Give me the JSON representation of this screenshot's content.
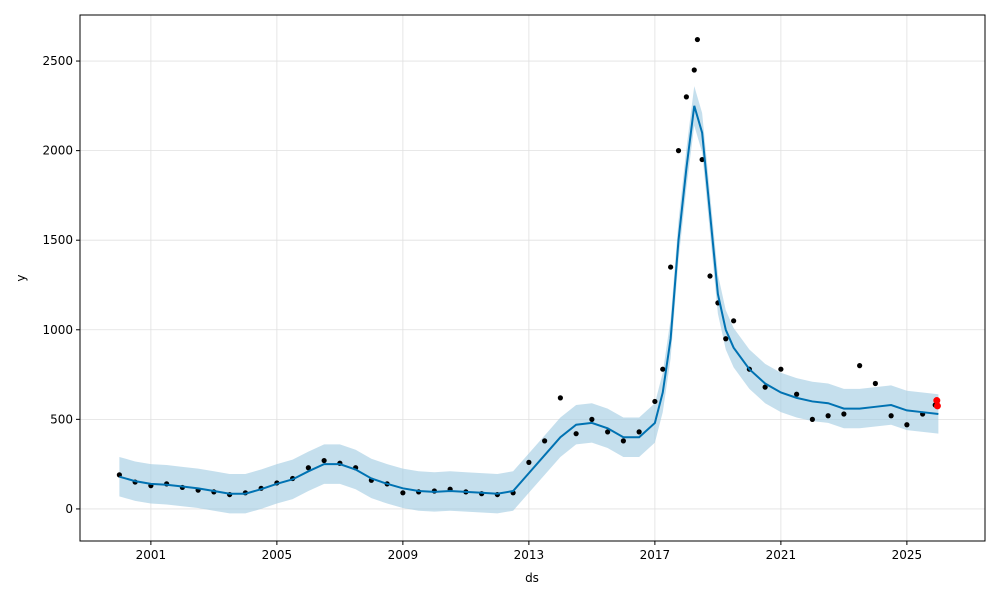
{
  "chart_data": {
    "type": "forecast",
    "x_label": "ds",
    "y_label": "y",
    "xlim": [
      1998.75,
      2027.48
    ],
    "ylim": [
      -179,
      2757
    ],
    "xticks": [
      2001,
      2005,
      2009,
      2013,
      2017,
      2021,
      2025
    ],
    "yticks": [
      0,
      500,
      1000,
      1500,
      2000,
      2500
    ],
    "grid": true,
    "forecast": {
      "color": "#0072b2",
      "band_color": "#9ecae1",
      "x": [
        2000.0,
        2000.5,
        2001,
        2001.5,
        2002,
        2002.5,
        2003,
        2003.5,
        2004,
        2004.5,
        2005,
        2005.5,
        2006,
        2006.5,
        2007,
        2007.5,
        2008,
        2008.5,
        2009,
        2009.5,
        2010,
        2010.5,
        2011,
        2011.5,
        2012,
        2012.5,
        2013,
        2013.5,
        2014,
        2014.5,
        2015,
        2015.5,
        2016,
        2016.5,
        2017,
        2017.25,
        2017.5,
        2017.75,
        2018,
        2018.25,
        2018.5,
        2018.75,
        2019,
        2019.25,
        2019.5,
        2020,
        2020.5,
        2021,
        2021.5,
        2022,
        2022.5,
        2023,
        2023.5,
        2024,
        2024.5,
        2025,
        2025.5,
        2026
      ],
      "yhat": [
        180,
        155,
        140,
        135,
        125,
        115,
        100,
        85,
        85,
        110,
        140,
        165,
        210,
        250,
        250,
        220,
        170,
        140,
        115,
        100,
        95,
        100,
        95,
        90,
        85,
        100,
        200,
        300,
        400,
        470,
        480,
        450,
        400,
        400,
        480,
        650,
        950,
        1500,
        1900,
        2250,
        2100,
        1650,
        1200,
        1000,
        900,
        780,
        700,
        650,
        620,
        600,
        590,
        560,
        560,
        570,
        580,
        550,
        540,
        530
      ],
      "lower": [
        70,
        45,
        30,
        25,
        15,
        5,
        -10,
        -25,
        -25,
        0,
        30,
        55,
        100,
        140,
        140,
        110,
        60,
        30,
        5,
        -10,
        -15,
        -10,
        -15,
        -20,
        -25,
        -10,
        90,
        190,
        290,
        360,
        370,
        340,
        290,
        290,
        370,
        540,
        840,
        1390,
        1790,
        2140,
        1990,
        1540,
        1090,
        890,
        790,
        670,
        590,
        540,
        510,
        490,
        480,
        450,
        450,
        460,
        470,
        440,
        430,
        420
      ],
      "upper": [
        290,
        265,
        250,
        245,
        235,
        225,
        210,
        195,
        195,
        220,
        250,
        275,
        320,
        360,
        360,
        330,
        280,
        250,
        225,
        210,
        205,
        210,
        205,
        200,
        195,
        210,
        310,
        410,
        510,
        580,
        590,
        560,
        510,
        510,
        590,
        760,
        1060,
        1610,
        2010,
        2360,
        2210,
        1760,
        1310,
        1110,
        1010,
        890,
        810,
        760,
        730,
        710,
        700,
        670,
        670,
        680,
        690,
        660,
        650,
        640
      ]
    },
    "observed": {
      "color": "#000000",
      "x": [
        2000.0,
        2000.5,
        2001,
        2001.5,
        2002,
        2002.5,
        2003,
        2003.5,
        2004,
        2004.5,
        2005,
        2005.5,
        2006,
        2006.5,
        2007,
        2007.5,
        2008,
        2008.5,
        2009,
        2009.5,
        2010,
        2010.5,
        2011,
        2011.5,
        2012,
        2012.5,
        2013,
        2013.5,
        2014,
        2014.5,
        2015,
        2015.5,
        2016,
        2016.5,
        2017,
        2017.25,
        2017.5,
        2017.75,
        2018,
        2018.25,
        2018.35,
        2018.5,
        2018.75,
        2019,
        2019.25,
        2019.5,
        2020,
        2020.5,
        2021,
        2021.5,
        2022,
        2022.5,
        2023,
        2023.5,
        2024,
        2024.5,
        2025,
        2025.5,
        2025.9
      ],
      "y": [
        190,
        150,
        130,
        140,
        120,
        105,
        95,
        80,
        90,
        115,
        145,
        170,
        230,
        270,
        255,
        230,
        160,
        140,
        90,
        95,
        100,
        110,
        95,
        85,
        80,
        90,
        260,
        380,
        620,
        420,
        500,
        430,
        380,
        430,
        600,
        780,
        1350,
        2000,
        2300,
        2450,
        2620,
        1950,
        1300,
        1150,
        950,
        1050,
        780,
        680,
        780,
        640,
        500,
        520,
        530,
        800,
        700,
        520,
        470,
        530,
        580
      ]
    },
    "highlight": {
      "color": "#ff0000",
      "x": [
        2025.95,
        2025.97
      ],
      "y": [
        605,
        575
      ]
    }
  }
}
